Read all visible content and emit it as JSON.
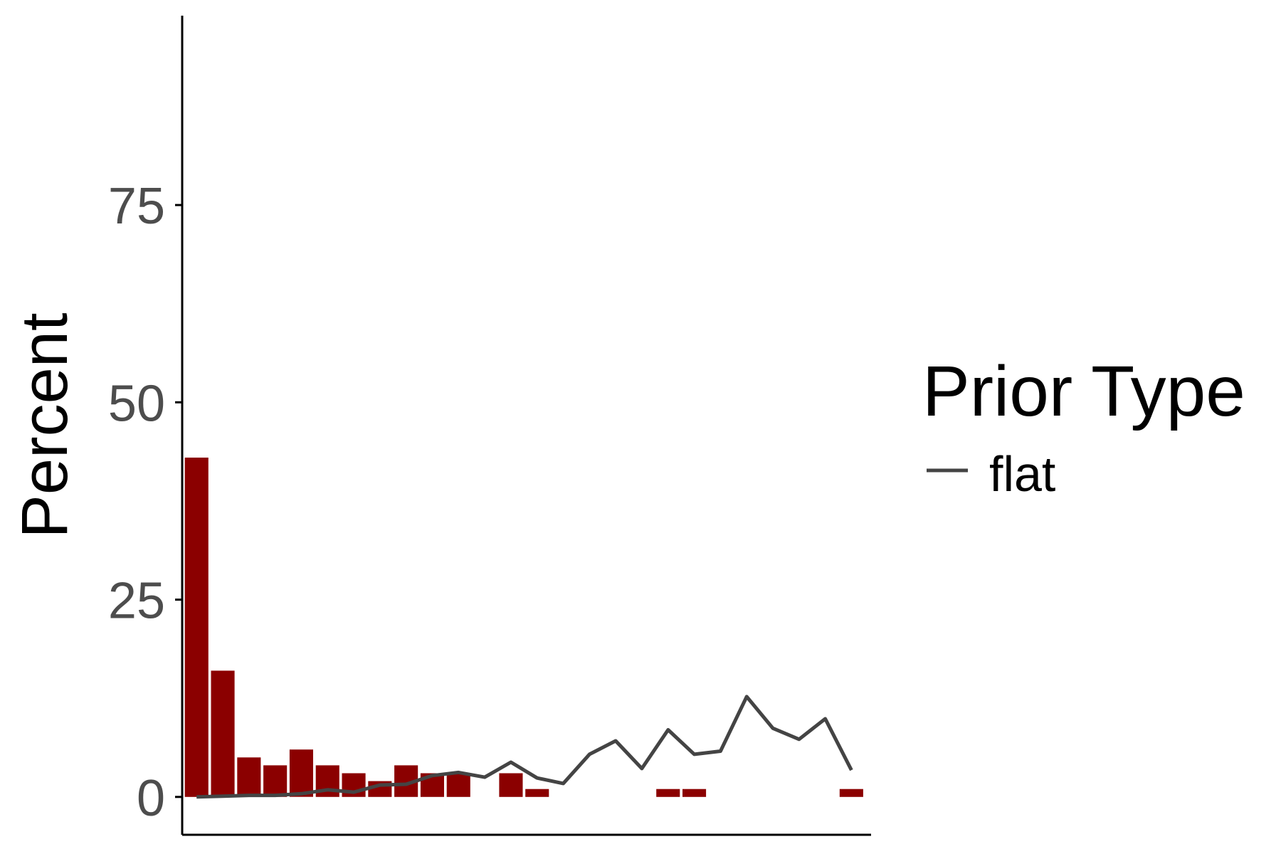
{
  "chart_data": {
    "type": "bar",
    "ylabel": "Percent",
    "xlabel": "",
    "ylim": [
      -4.8,
      99
    ],
    "yticks": [
      0,
      25,
      50,
      75
    ],
    "grid": false,
    "legend": {
      "title": "Prior Type",
      "position": "right",
      "entries": [
        "flat"
      ]
    },
    "colors": {
      "bars": "#8b0000",
      "line": "#444444",
      "axis": "#000000",
      "tick_label": "#4d4d4d"
    },
    "bars": {
      "x": [
        1,
        2,
        3,
        4,
        5,
        6,
        7,
        8,
        9,
        10,
        11,
        12,
        13,
        14,
        15,
        16,
        17,
        18,
        19,
        20,
        21,
        22,
        23,
        24,
        25,
        26
      ],
      "values": [
        43,
        16,
        5,
        4,
        6,
        4,
        3,
        2,
        4,
        3,
        3,
        0,
        3,
        1,
        0,
        0,
        0,
        0,
        1,
        1,
        0,
        0,
        0,
        0,
        0,
        1
      ]
    },
    "series": [
      {
        "name": "flat",
        "x": [
          1,
          2,
          3,
          4,
          5,
          6,
          7,
          8,
          9,
          10,
          11,
          12,
          13,
          14,
          15,
          16,
          17,
          18,
          19,
          20,
          21,
          22,
          23,
          24,
          25,
          26
        ],
        "values": [
          0,
          0.1,
          0.2,
          0.2,
          0.4,
          0.9,
          0.6,
          1.5,
          1.6,
          2.7,
          3.1,
          2.5,
          4.4,
          2.4,
          1.7,
          5.4,
          7.1,
          3.6,
          8.5,
          5.4,
          5.8,
          12.7,
          8.7,
          7.3,
          9.9,
          3.4
        ]
      }
    ]
  }
}
